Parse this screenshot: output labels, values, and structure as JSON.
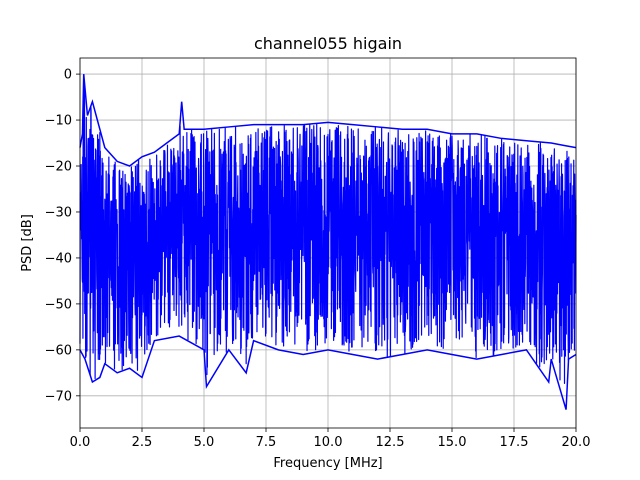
{
  "chart_data": {
    "type": "line",
    "title": "channel055 higain",
    "xlabel": "Frequency [MHz]",
    "ylabel": "PSD [dB]",
    "xlim": [
      0.0,
      20.0
    ],
    "ylim": [
      -77,
      3.5
    ],
    "xticks": [
      0.0,
      2.5,
      5.0,
      7.5,
      10.0,
      12.5,
      15.0,
      17.5,
      20.0
    ],
    "xtick_labels": [
      "0.0",
      "2.5",
      "5.0",
      "7.5",
      "10.0",
      "12.5",
      "15.0",
      "17.5",
      "20.0"
    ],
    "yticks": [
      0,
      -10,
      -20,
      -30,
      -40,
      -50,
      -60,
      -70
    ],
    "ytick_labels": [
      "0",
      "−10",
      "−20",
      "−30",
      "−40",
      "−50",
      "−60",
      "−70"
    ],
    "grid": true,
    "series": [
      {
        "color": "#0000ff",
        "upper_envelope": {
          "x": [
            0.0,
            0.1,
            0.15,
            0.3,
            0.5,
            0.8,
            1.0,
            1.5,
            2.0,
            2.5,
            3.0,
            3.5,
            4.0,
            4.1,
            4.2,
            5.0,
            6.0,
            7.0,
            8.0,
            9.0,
            10.0,
            11.0,
            12.0,
            13.0,
            14.0,
            15.0,
            16.0,
            17.0,
            18.0,
            19.0,
            19.5,
            20.0
          ],
          "y": [
            -16,
            -13,
            0,
            -9,
            -6,
            -12,
            -16,
            -19,
            -20,
            -18,
            -17,
            -15,
            -13,
            -6,
            -12,
            -12,
            -11.5,
            -11,
            -11,
            -11,
            -10.5,
            -11,
            -11.5,
            -12,
            -12,
            -13,
            -13,
            -14,
            -14.5,
            -15,
            -15.5,
            -16
          ]
        },
        "lower_envelope": {
          "x": [
            0.0,
            0.2,
            0.5,
            0.8,
            1.0,
            1.5,
            2.0,
            2.5,
            3.0,
            4.0,
            5.0,
            5.1,
            6.0,
            6.7,
            7.0,
            8.0,
            9.0,
            10.0,
            11.0,
            12.0,
            13.0,
            14.0,
            15.0,
            16.0,
            17.0,
            18.0,
            18.9,
            19.0,
            19.6,
            19.7,
            20.0
          ],
          "y": [
            -60,
            -62,
            -67,
            -66,
            -63,
            -65,
            -64,
            -66,
            -58,
            -57,
            -60,
            -68,
            -60,
            -65,
            -58,
            -60,
            -61,
            -60,
            -61,
            -62,
            -61,
            -60,
            -61,
            -62,
            -61,
            -60,
            -67,
            -62,
            -73,
            -62,
            -61
          ]
        }
      }
    ]
  }
}
